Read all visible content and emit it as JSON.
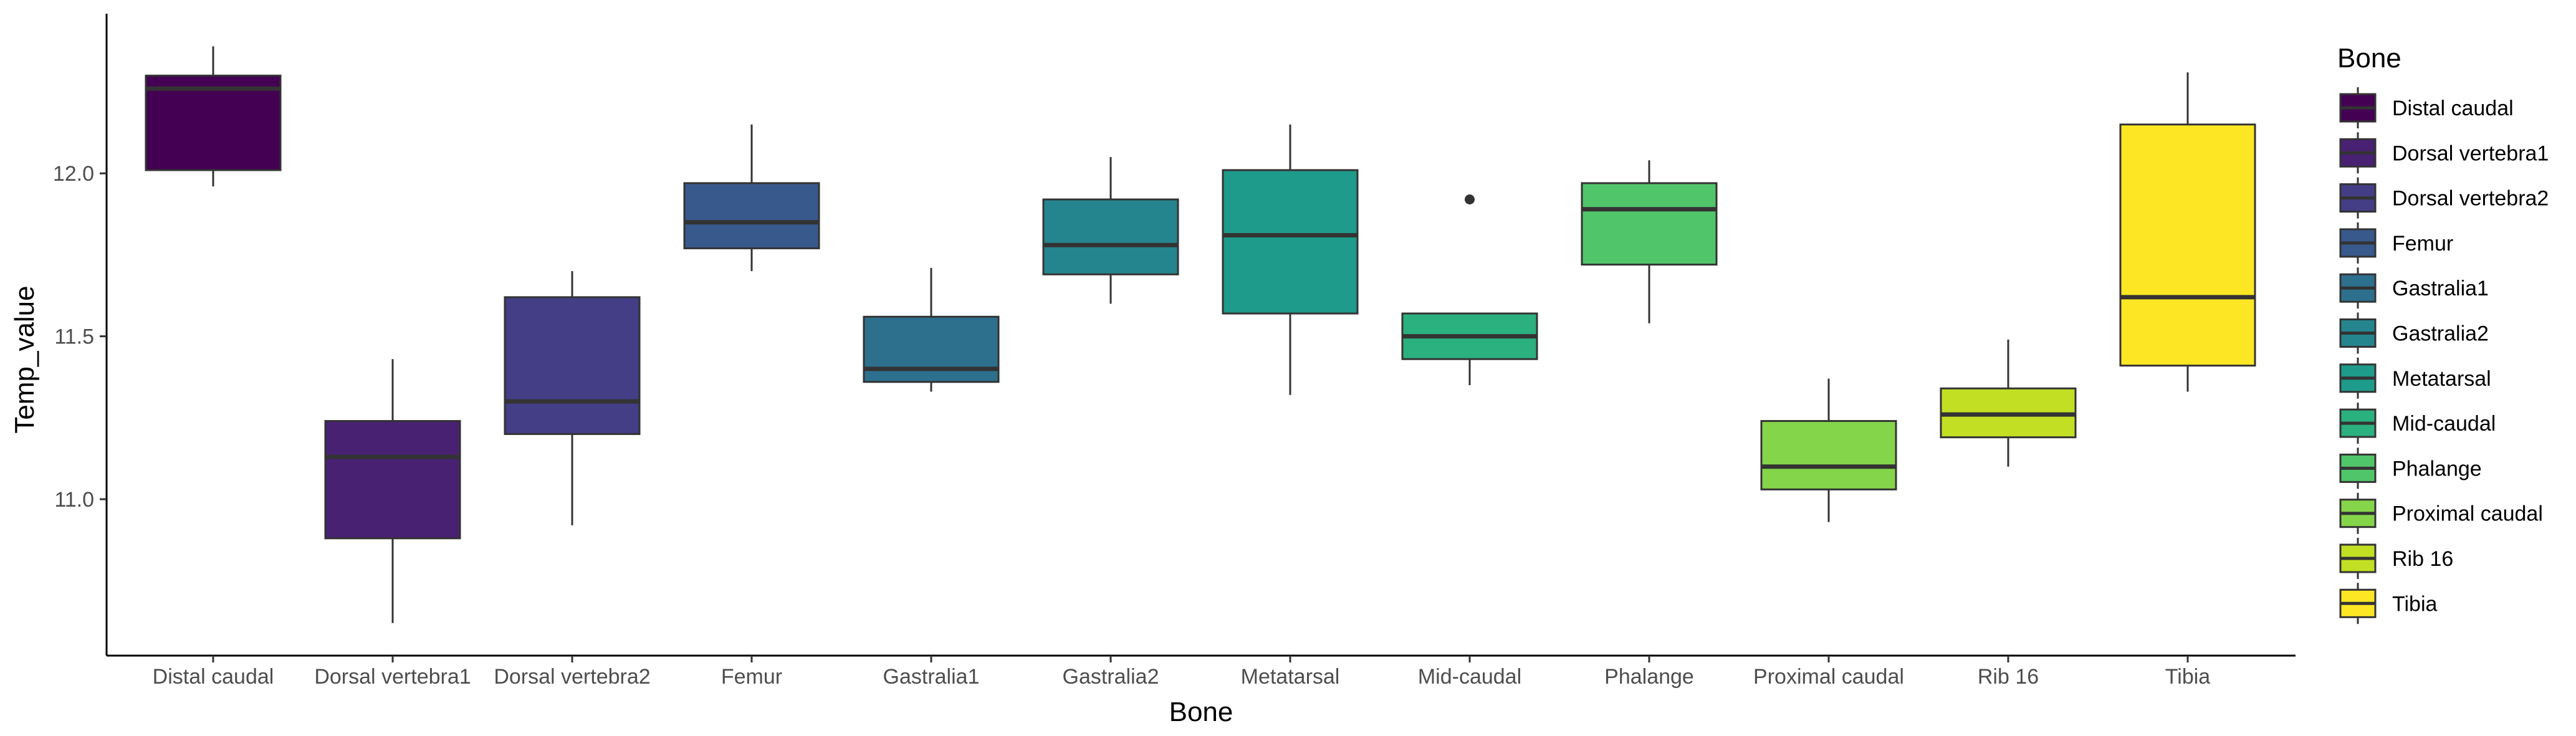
{
  "chart_data": {
    "type": "boxplot",
    "title": "",
    "xlabel": "Bone",
    "ylabel": "Temp_value",
    "ylim": [
      10.52,
      12.49
    ],
    "yticks": [
      11.0,
      11.5,
      12.0
    ],
    "ytick_labels": [
      "11.0",
      "11.5",
      "12.0"
    ],
    "grid": false,
    "legend": {
      "title": "Bone",
      "position": "right"
    },
    "categories": [
      "Distal caudal",
      "Dorsal vertebra1",
      "Dorsal vertebra2",
      "Femur",
      "Gastralia1",
      "Gastralia2",
      "Metatarsal",
      "Mid-caudal",
      "Phalange",
      "Proximal caudal",
      "Rib 16",
      "Tibia"
    ],
    "colors": [
      "#440154",
      "#482173",
      "#433E85",
      "#38598C",
      "#2D708E",
      "#25858E",
      "#1E9B8A",
      "#2BB07F",
      "#51C56A",
      "#85D54A",
      "#C2DF23",
      "#FDE725"
    ],
    "boxes": [
      {
        "min": 11.96,
        "q1": 12.01,
        "median": 12.26,
        "q3": 12.3,
        "max": 12.39,
        "outliers": []
      },
      {
        "min": 10.62,
        "q1": 10.88,
        "median": 11.13,
        "q3": 11.24,
        "max": 11.43,
        "outliers": []
      },
      {
        "min": 10.92,
        "q1": 11.2,
        "median": 11.3,
        "q3": 11.62,
        "max": 11.7,
        "outliers": []
      },
      {
        "min": 11.7,
        "q1": 11.77,
        "median": 11.85,
        "q3": 11.97,
        "max": 12.15,
        "outliers": []
      },
      {
        "min": 11.33,
        "q1": 11.36,
        "median": 11.4,
        "q3": 11.56,
        "max": 11.71,
        "outliers": []
      },
      {
        "min": 11.6,
        "q1": 11.69,
        "median": 11.78,
        "q3": 11.92,
        "max": 12.05,
        "outliers": []
      },
      {
        "min": 11.32,
        "q1": 11.57,
        "median": 11.81,
        "q3": 12.01,
        "max": 12.15,
        "outliers": []
      },
      {
        "min": 11.35,
        "q1": 11.43,
        "median": 11.5,
        "q3": 11.57,
        "max": 11.57,
        "outliers": [
          11.92
        ]
      },
      {
        "min": 11.54,
        "q1": 11.72,
        "median": 11.89,
        "q3": 11.97,
        "max": 12.04,
        "outliers": []
      },
      {
        "min": 10.93,
        "q1": 11.03,
        "median": 11.1,
        "q3": 11.24,
        "max": 11.37,
        "outliers": []
      },
      {
        "min": 11.1,
        "q1": 11.19,
        "median": 11.26,
        "q3": 11.34,
        "max": 11.49,
        "outliers": []
      },
      {
        "min": 11.33,
        "q1": 11.41,
        "median": 11.62,
        "q3": 12.15,
        "max": 12.31,
        "outliers": []
      }
    ]
  }
}
